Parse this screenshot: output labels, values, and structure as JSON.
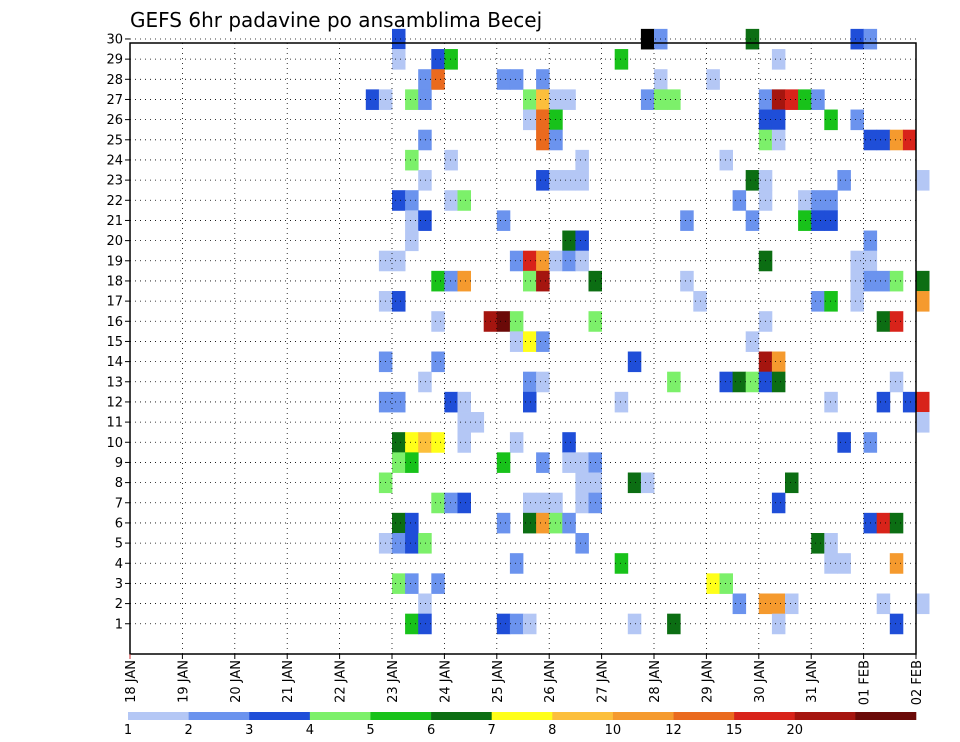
{
  "chart_data": {
    "type": "heatmap",
    "title": "GEFS 6hr padavine po ansamblima Becej",
    "x_tick_labels": [
      "18 JAN",
      "19 JAN",
      "20 JAN",
      "21 JAN",
      "22 JAN",
      "23 JAN",
      "24 JAN",
      "25 JAN",
      "26 JAN",
      "27 JAN",
      "28 JAN",
      "29 JAN",
      "30 JAN",
      "31 JAN",
      "01 FEB",
      "02 FEB"
    ],
    "y_tick_labels": [
      "1",
      "2",
      "3",
      "4",
      "5",
      "6",
      "7",
      "8",
      "9",
      "10",
      "11",
      "12",
      "13",
      "14",
      "15",
      "16",
      "17",
      "18",
      "19",
      "20",
      "21",
      "22",
      "23",
      "24",
      "25",
      "26",
      "27",
      "28",
      "29",
      "30"
    ],
    "ylim": [
      0,
      30
    ],
    "step_hours": 6,
    "grid": true,
    "colorbar": {
      "levels": [
        1,
        2,
        3,
        4,
        5,
        6,
        7,
        8,
        10,
        12,
        15,
        20
      ],
      "colors": [
        "#b4c7f5",
        "#6b93ee",
        "#1f4ed8",
        "#7cf06a",
        "#18c21a",
        "#0c6e13",
        "#ffff19",
        "#fcbf3c",
        "#f59a2e",
        "#ea6a1e",
        "#d8231a",
        "#a5150f",
        "#6b0a08"
      ]
    },
    "cells": [
      {
        "member": 30,
        "step": 20,
        "cls": 2
      },
      {
        "member": 30,
        "step": 39,
        "cls": 14
      },
      {
        "member": 30,
        "step": 40,
        "cls": 1
      },
      {
        "member": 30,
        "step": 47,
        "cls": 5
      },
      {
        "member": 30,
        "step": 55,
        "cls": 2
      },
      {
        "member": 30,
        "step": 56,
        "cls": 1
      },
      {
        "member": 29,
        "step": 20,
        "cls": 0
      },
      {
        "member": 29,
        "step": 23,
        "cls": 2
      },
      {
        "member": 29,
        "step": 24,
        "cls": 4
      },
      {
        "member": 29,
        "step": 37,
        "cls": 4
      },
      {
        "member": 29,
        "step": 49,
        "cls": 0
      },
      {
        "member": 28,
        "step": 22,
        "cls": 1
      },
      {
        "member": 28,
        "step": 23,
        "cls": 9
      },
      {
        "member": 28,
        "step": 28,
        "cls": 1
      },
      {
        "member": 28,
        "step": 29,
        "cls": 1
      },
      {
        "member": 28,
        "step": 31,
        "cls": 1
      },
      {
        "member": 28,
        "step": 40,
        "cls": 0
      },
      {
        "member": 28,
        "step": 44,
        "cls": 0
      },
      {
        "member": 27,
        "step": 18,
        "cls": 2
      },
      {
        "member": 27,
        "step": 19,
        "cls": 0
      },
      {
        "member": 27,
        "step": 21,
        "cls": 3
      },
      {
        "member": 27,
        "step": 22,
        "cls": 1
      },
      {
        "member": 27,
        "step": 30,
        "cls": 3
      },
      {
        "member": 27,
        "step": 31,
        "cls": 7
      },
      {
        "member": 27,
        "step": 32,
        "cls": 0
      },
      {
        "member": 27,
        "step": 33,
        "cls": 0
      },
      {
        "member": 27,
        "step": 39,
        "cls": 1
      },
      {
        "member": 27,
        "step": 40,
        "cls": 3
      },
      {
        "member": 27,
        "step": 41,
        "cls": 3
      },
      {
        "member": 27,
        "step": 48,
        "cls": 1
      },
      {
        "member": 27,
        "step": 49,
        "cls": 11
      },
      {
        "member": 27,
        "step": 50,
        "cls": 10
      },
      {
        "member": 27,
        "step": 51,
        "cls": 4
      },
      {
        "member": 27,
        "step": 52,
        "cls": 1
      },
      {
        "member": 26,
        "step": 30,
        "cls": 0
      },
      {
        "member": 26,
        "step": 31,
        "cls": 9
      },
      {
        "member": 26,
        "step": 32,
        "cls": 4
      },
      {
        "member": 26,
        "step": 48,
        "cls": 2
      },
      {
        "member": 26,
        "step": 49,
        "cls": 2
      },
      {
        "member": 26,
        "step": 53,
        "cls": 4
      },
      {
        "member": 26,
        "step": 55,
        "cls": 1
      },
      {
        "member": 25,
        "step": 22,
        "cls": 1
      },
      {
        "member": 25,
        "step": 31,
        "cls": 9
      },
      {
        "member": 25,
        "step": 32,
        "cls": 1
      },
      {
        "member": 25,
        "step": 48,
        "cls": 3
      },
      {
        "member": 25,
        "step": 49,
        "cls": 0
      },
      {
        "member": 25,
        "step": 56,
        "cls": 2
      },
      {
        "member": 25,
        "step": 57,
        "cls": 2
      },
      {
        "member": 25,
        "step": 58,
        "cls": 8
      },
      {
        "member": 25,
        "step": 59,
        "cls": 10
      },
      {
        "member": 24,
        "step": 21,
        "cls": 3
      },
      {
        "member": 24,
        "step": 24,
        "cls": 0
      },
      {
        "member": 24,
        "step": 34,
        "cls": 0
      },
      {
        "member": 24,
        "step": 45,
        "cls": 0
      },
      {
        "member": 23,
        "step": 22,
        "cls": 0
      },
      {
        "member": 23,
        "step": 31,
        "cls": 2
      },
      {
        "member": 23,
        "step": 32,
        "cls": 0
      },
      {
        "member": 23,
        "step": 33,
        "cls": 0
      },
      {
        "member": 23,
        "step": 34,
        "cls": 0
      },
      {
        "member": 23,
        "step": 47,
        "cls": 5
      },
      {
        "member": 23,
        "step": 48,
        "cls": 0
      },
      {
        "member": 23,
        "step": 54,
        "cls": 1
      },
      {
        "member": 23,
        "step": 60,
        "cls": 0
      },
      {
        "member": 22,
        "step": 20,
        "cls": 2
      },
      {
        "member": 22,
        "step": 21,
        "cls": 1
      },
      {
        "member": 22,
        "step": 24,
        "cls": 0
      },
      {
        "member": 22,
        "step": 25,
        "cls": 3
      },
      {
        "member": 22,
        "step": 46,
        "cls": 1
      },
      {
        "member": 22,
        "step": 48,
        "cls": 0
      },
      {
        "member": 22,
        "step": 51,
        "cls": 0
      },
      {
        "member": 22,
        "step": 52,
        "cls": 1
      },
      {
        "member": 22,
        "step": 53,
        "cls": 1
      },
      {
        "member": 21,
        "step": 21,
        "cls": 0
      },
      {
        "member": 21,
        "step": 22,
        "cls": 2
      },
      {
        "member": 21,
        "step": 28,
        "cls": 1
      },
      {
        "member": 21,
        "step": 42,
        "cls": 1
      },
      {
        "member": 21,
        "step": 47,
        "cls": 1
      },
      {
        "member": 21,
        "step": 51,
        "cls": 4
      },
      {
        "member": 21,
        "step": 52,
        "cls": 2
      },
      {
        "member": 21,
        "step": 53,
        "cls": 2
      },
      {
        "member": 20,
        "step": 21,
        "cls": 0
      },
      {
        "member": 20,
        "step": 33,
        "cls": 5
      },
      {
        "member": 20,
        "step": 34,
        "cls": 2
      },
      {
        "member": 20,
        "step": 56,
        "cls": 1
      },
      {
        "member": 19,
        "step": 19,
        "cls": 0
      },
      {
        "member": 19,
        "step": 20,
        "cls": 0
      },
      {
        "member": 19,
        "step": 29,
        "cls": 1
      },
      {
        "member": 19,
        "step": 30,
        "cls": 10
      },
      {
        "member": 19,
        "step": 31,
        "cls": 8
      },
      {
        "member": 19,
        "step": 32,
        "cls": 0
      },
      {
        "member": 19,
        "step": 33,
        "cls": 1
      },
      {
        "member": 19,
        "step": 34,
        "cls": 0
      },
      {
        "member": 19,
        "step": 48,
        "cls": 5
      },
      {
        "member": 19,
        "step": 55,
        "cls": 0
      },
      {
        "member": 19,
        "step": 56,
        "cls": 0
      },
      {
        "member": 18,
        "step": 23,
        "cls": 4
      },
      {
        "member": 18,
        "step": 24,
        "cls": 1
      },
      {
        "member": 18,
        "step": 25,
        "cls": 8
      },
      {
        "member": 18,
        "step": 30,
        "cls": 3
      },
      {
        "member": 18,
        "step": 31,
        "cls": 11
      },
      {
        "member": 18,
        "step": 35,
        "cls": 5
      },
      {
        "member": 18,
        "step": 42,
        "cls": 0
      },
      {
        "member": 18,
        "step": 55,
        "cls": 0
      },
      {
        "member": 18,
        "step": 56,
        "cls": 1
      },
      {
        "member": 18,
        "step": 57,
        "cls": 1
      },
      {
        "member": 18,
        "step": 58,
        "cls": 3
      },
      {
        "member": 18,
        "step": 60,
        "cls": 5
      },
      {
        "member": 17,
        "step": 19,
        "cls": 0
      },
      {
        "member": 17,
        "step": 20,
        "cls": 2
      },
      {
        "member": 17,
        "step": 43,
        "cls": 0
      },
      {
        "member": 17,
        "step": 52,
        "cls": 1
      },
      {
        "member": 17,
        "step": 53,
        "cls": 4
      },
      {
        "member": 17,
        "step": 55,
        "cls": 0
      },
      {
        "member": 17,
        "step": 60,
        "cls": 8
      },
      {
        "member": 16,
        "step": 23,
        "cls": 0
      },
      {
        "member": 16,
        "step": 27,
        "cls": 11
      },
      {
        "member": 16,
        "step": 28,
        "cls": 12
      },
      {
        "member": 16,
        "step": 29,
        "cls": 3
      },
      {
        "member": 16,
        "step": 35,
        "cls": 3
      },
      {
        "member": 16,
        "step": 48,
        "cls": 0
      },
      {
        "member": 16,
        "step": 57,
        "cls": 5
      },
      {
        "member": 16,
        "step": 58,
        "cls": 10
      },
      {
        "member": 15,
        "step": 29,
        "cls": 0
      },
      {
        "member": 15,
        "step": 30,
        "cls": 6
      },
      {
        "member": 15,
        "step": 31,
        "cls": 1
      },
      {
        "member": 15,
        "step": 47,
        "cls": 0
      },
      {
        "member": 14,
        "step": 19,
        "cls": 1
      },
      {
        "member": 14,
        "step": 23,
        "cls": 1
      },
      {
        "member": 14,
        "step": 38,
        "cls": 2
      },
      {
        "member": 14,
        "step": 48,
        "cls": 11
      },
      {
        "member": 14,
        "step": 49,
        "cls": 8
      },
      {
        "member": 13,
        "step": 22,
        "cls": 0
      },
      {
        "member": 13,
        "step": 30,
        "cls": 1
      },
      {
        "member": 13,
        "step": 31,
        "cls": 0
      },
      {
        "member": 13,
        "step": 41,
        "cls": 3
      },
      {
        "member": 13,
        "step": 45,
        "cls": 2
      },
      {
        "member": 13,
        "step": 46,
        "cls": 5
      },
      {
        "member": 13,
        "step": 47,
        "cls": 3
      },
      {
        "member": 13,
        "step": 48,
        "cls": 2
      },
      {
        "member": 13,
        "step": 49,
        "cls": 5
      },
      {
        "member": 13,
        "step": 58,
        "cls": 0
      },
      {
        "member": 12,
        "step": 19,
        "cls": 1
      },
      {
        "member": 12,
        "step": 20,
        "cls": 1
      },
      {
        "member": 12,
        "step": 24,
        "cls": 2
      },
      {
        "member": 12,
        "step": 25,
        "cls": 0
      },
      {
        "member": 12,
        "step": 30,
        "cls": 2
      },
      {
        "member": 12,
        "step": 37,
        "cls": 0
      },
      {
        "member": 12,
        "step": 53,
        "cls": 0
      },
      {
        "member": 12,
        "step": 57,
        "cls": 2
      },
      {
        "member": 12,
        "step": 59,
        "cls": 2
      },
      {
        "member": 12,
        "step": 60,
        "cls": 10
      },
      {
        "member": 11,
        "step": 25,
        "cls": 0
      },
      {
        "member": 11,
        "step": 26,
        "cls": 0
      },
      {
        "member": 11,
        "step": 60,
        "cls": 0
      },
      {
        "member": 10,
        "step": 20,
        "cls": 5
      },
      {
        "member": 10,
        "step": 21,
        "cls": 6
      },
      {
        "member": 10,
        "step": 22,
        "cls": 7
      },
      {
        "member": 10,
        "step": 23,
        "cls": 6
      },
      {
        "member": 10,
        "step": 25,
        "cls": 0
      },
      {
        "member": 10,
        "step": 29,
        "cls": 0
      },
      {
        "member": 10,
        "step": 33,
        "cls": 2
      },
      {
        "member": 10,
        "step": 54,
        "cls": 2
      },
      {
        "member": 10,
        "step": 56,
        "cls": 1
      },
      {
        "member": 9,
        "step": 20,
        "cls": 3
      },
      {
        "member": 9,
        "step": 21,
        "cls": 4
      },
      {
        "member": 9,
        "step": 28,
        "cls": 4
      },
      {
        "member": 9,
        "step": 31,
        "cls": 1
      },
      {
        "member": 9,
        "step": 33,
        "cls": 0
      },
      {
        "member": 9,
        "step": 34,
        "cls": 0
      },
      {
        "member": 9,
        "step": 35,
        "cls": 1
      },
      {
        "member": 8,
        "step": 19,
        "cls": 3
      },
      {
        "member": 8,
        "step": 34,
        "cls": 0
      },
      {
        "member": 8,
        "step": 35,
        "cls": 0
      },
      {
        "member": 8,
        "step": 38,
        "cls": 5
      },
      {
        "member": 8,
        "step": 39,
        "cls": 0
      },
      {
        "member": 8,
        "step": 50,
        "cls": 5
      },
      {
        "member": 7,
        "step": 23,
        "cls": 3
      },
      {
        "member": 7,
        "step": 24,
        "cls": 1
      },
      {
        "member": 7,
        "step": 25,
        "cls": 2
      },
      {
        "member": 7,
        "step": 30,
        "cls": 0
      },
      {
        "member": 7,
        "step": 31,
        "cls": 0
      },
      {
        "member": 7,
        "step": 32,
        "cls": 0
      },
      {
        "member": 7,
        "step": 34,
        "cls": 0
      },
      {
        "member": 7,
        "step": 35,
        "cls": 1
      },
      {
        "member": 7,
        "step": 49,
        "cls": 2
      },
      {
        "member": 6,
        "step": 20,
        "cls": 5
      },
      {
        "member": 6,
        "step": 21,
        "cls": 2
      },
      {
        "member": 6,
        "step": 28,
        "cls": 1
      },
      {
        "member": 6,
        "step": 30,
        "cls": 5
      },
      {
        "member": 6,
        "step": 31,
        "cls": 8
      },
      {
        "member": 6,
        "step": 32,
        "cls": 3
      },
      {
        "member": 6,
        "step": 33,
        "cls": 1
      },
      {
        "member": 6,
        "step": 56,
        "cls": 2
      },
      {
        "member": 6,
        "step": 57,
        "cls": 10
      },
      {
        "member": 6,
        "step": 58,
        "cls": 5
      },
      {
        "member": 5,
        "step": 19,
        "cls": 0
      },
      {
        "member": 5,
        "step": 20,
        "cls": 1
      },
      {
        "member": 5,
        "step": 21,
        "cls": 2
      },
      {
        "member": 5,
        "step": 22,
        "cls": 3
      },
      {
        "member": 5,
        "step": 34,
        "cls": 1
      },
      {
        "member": 5,
        "step": 52,
        "cls": 5
      },
      {
        "member": 5,
        "step": 53,
        "cls": 0
      },
      {
        "member": 4,
        "step": 29,
        "cls": 1
      },
      {
        "member": 4,
        "step": 37,
        "cls": 4
      },
      {
        "member": 4,
        "step": 53,
        "cls": 0
      },
      {
        "member": 4,
        "step": 54,
        "cls": 0
      },
      {
        "member": 4,
        "step": 58,
        "cls": 8
      },
      {
        "member": 3,
        "step": 20,
        "cls": 3
      },
      {
        "member": 3,
        "step": 21,
        "cls": 1
      },
      {
        "member": 3,
        "step": 23,
        "cls": 1
      },
      {
        "member": 3,
        "step": 44,
        "cls": 6
      },
      {
        "member": 3,
        "step": 45,
        "cls": 3
      },
      {
        "member": 2,
        "step": 22,
        "cls": 0
      },
      {
        "member": 2,
        "step": 46,
        "cls": 1
      },
      {
        "member": 2,
        "step": 48,
        "cls": 8
      },
      {
        "member": 2,
        "step": 49,
        "cls": 8
      },
      {
        "member": 2,
        "step": 50,
        "cls": 0
      },
      {
        "member": 2,
        "step": 57,
        "cls": 0
      },
      {
        "member": 2,
        "step": 60,
        "cls": 0
      },
      {
        "member": 1,
        "step": 21,
        "cls": 4
      },
      {
        "member": 1,
        "step": 22,
        "cls": 2
      },
      {
        "member": 1,
        "step": 28,
        "cls": 2
      },
      {
        "member": 1,
        "step": 29,
        "cls": 1
      },
      {
        "member": 1,
        "step": 30,
        "cls": 0
      },
      {
        "member": 1,
        "step": 38,
        "cls": 0
      },
      {
        "member": 1,
        "step": 41,
        "cls": 5
      },
      {
        "member": 1,
        "step": 49,
        "cls": 0
      },
      {
        "member": 1,
        "step": 58,
        "cls": 2
      }
    ]
  }
}
